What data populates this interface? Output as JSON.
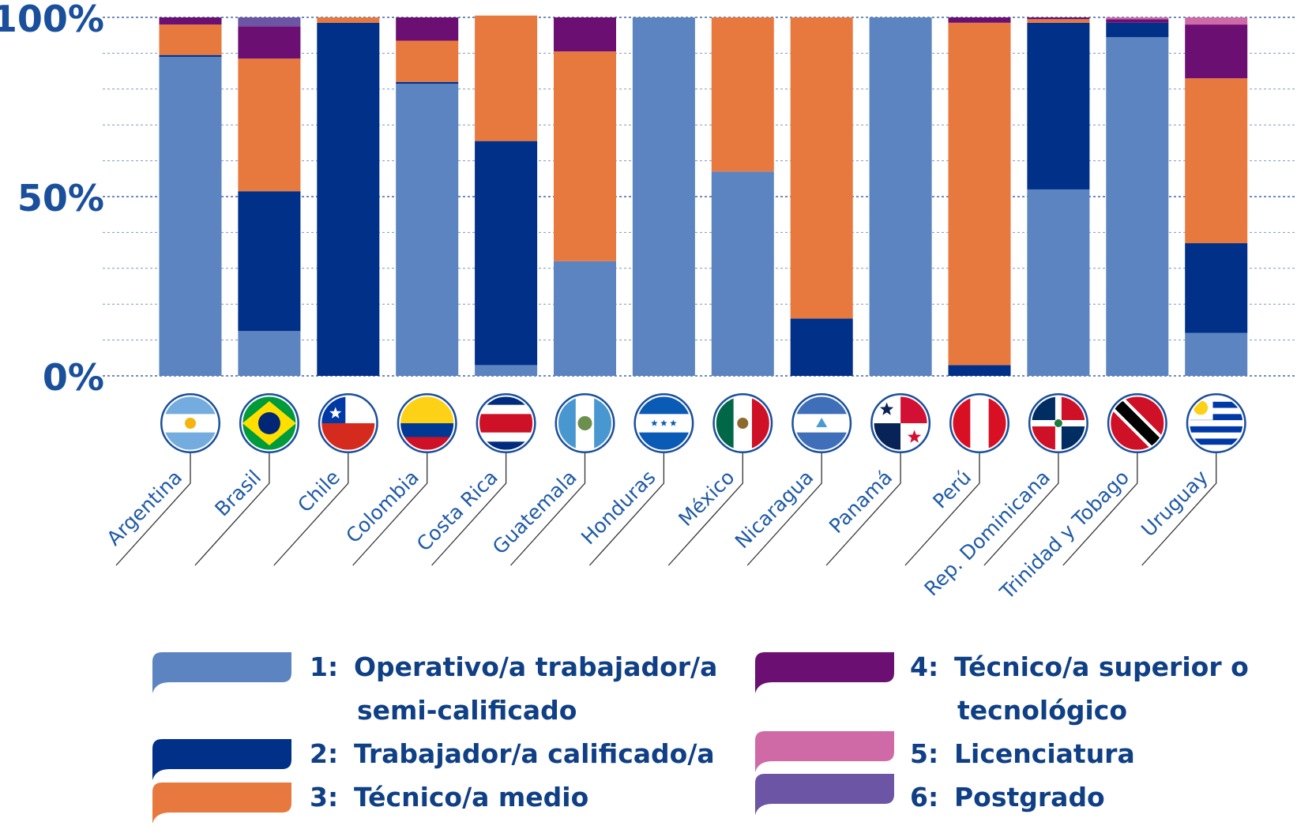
{
  "chart_data": {
    "type": "bar",
    "stacked": true,
    "title": "",
    "xlabel": "",
    "ylabel": "",
    "ylim": [
      0,
      100
    ],
    "y_ticks": [
      {
        "value": 0,
        "label": "0%"
      },
      {
        "value": 50,
        "label": "50%"
      },
      {
        "value": 100,
        "label": "100%"
      }
    ],
    "grid": true,
    "categories": [
      "Argentina",
      "Brasil",
      "Chile",
      "Colombia",
      "Costa Rica",
      "Guatemala",
      "Honduras",
      "México",
      "Nicaragua",
      "Panamá",
      "Perú",
      "Rep. Dominicana",
      "Trinidad y Tobago",
      "Uruguay"
    ],
    "series": [
      {
        "name": "Operativo/a trabajador/a semi-calificado",
        "number": "1:",
        "color": "#5b84c0",
        "values": [
          89,
          12.5,
          0,
          81.5,
          3,
          32,
          100,
          57,
          0,
          100,
          0,
          52,
          94.5,
          12
        ]
      },
      {
        "name": "Trabajador/a calificado/a",
        "number": "2:",
        "color": "#003087",
        "values": [
          0.5,
          39,
          98.5,
          0.5,
          62.5,
          0,
          0,
          0,
          16,
          0,
          3,
          46.5,
          4,
          25
        ]
      },
      {
        "name": "Técnico/a medio",
        "number": "3:",
        "color": "#e8793e",
        "values": [
          8.5,
          37,
          1.5,
          11.5,
          35,
          58.5,
          0,
          43,
          84,
          0,
          95.5,
          1,
          0,
          46
        ]
      },
      {
        "name": "Técnico/a superior o tecnológico",
        "number": "4:",
        "color": "#6b0f73",
        "values": [
          2,
          9,
          0,
          6.5,
          0,
          9.5,
          0,
          0,
          0,
          0,
          1.5,
          0.5,
          1,
          15
        ]
      },
      {
        "name": "Licenciatura",
        "number": "5:",
        "color": "#d06aa6",
        "values": [
          0,
          0,
          0,
          0,
          0,
          0,
          0,
          0,
          0,
          0,
          0,
          0,
          0.5,
          2
        ]
      },
      {
        "name": "Postgrado",
        "number": "6:",
        "color": "#6b55a4",
        "values": [
          0,
          2.5,
          0,
          0,
          0,
          0,
          0,
          0,
          0,
          0,
          0,
          0,
          0,
          0
        ]
      }
    ],
    "legend_position": "bottom"
  },
  "legend": [
    {
      "number": "1:",
      "lines": [
        "Operativo/a trabajador/a",
        "semi-calificado"
      ],
      "color": "#5b84c0"
    },
    {
      "number": "2:",
      "lines": [
        "Trabajador/a calificado/a"
      ],
      "color": "#003087"
    },
    {
      "number": "3:",
      "lines": [
        "Técnico/a medio"
      ],
      "color": "#e8793e"
    },
    {
      "number": "4:",
      "lines": [
        "Técnico/a superior o",
        "tecnológico"
      ],
      "color": "#6b0f73"
    },
    {
      "number": "5:",
      "lines": [
        "Licenciatura"
      ],
      "color": "#d06aa6"
    },
    {
      "number": "6:",
      "lines": [
        "Postgrado"
      ],
      "color": "#6b55a4"
    }
  ],
  "flags": [
    {
      "country": "Argentina",
      "icon": "argentina-flag-icon"
    },
    {
      "country": "Brasil",
      "icon": "brazil-flag-icon"
    },
    {
      "country": "Chile",
      "icon": "chile-flag-icon"
    },
    {
      "country": "Colombia",
      "icon": "colombia-flag-icon"
    },
    {
      "country": "Costa Rica",
      "icon": "costa-rica-flag-icon"
    },
    {
      "country": "Guatemala",
      "icon": "guatemala-flag-icon"
    },
    {
      "country": "Honduras",
      "icon": "honduras-flag-icon"
    },
    {
      "country": "México",
      "icon": "mexico-flag-icon"
    },
    {
      "country": "Nicaragua",
      "icon": "nicaragua-flag-icon"
    },
    {
      "country": "Panamá",
      "icon": "panama-flag-icon"
    },
    {
      "country": "Perú",
      "icon": "peru-flag-icon"
    },
    {
      "country": "Rep. Dominicana",
      "icon": "dominican-republic-flag-icon"
    },
    {
      "country": "Trinidad y Tobago",
      "icon": "trinidad-and-tobago-flag-icon"
    },
    {
      "country": "Uruguay",
      "icon": "uruguay-flag-icon"
    }
  ],
  "colors": {
    "axis_text": "#1a4f9c",
    "grid": "#2b55a0",
    "label_text": "#1f5aa6",
    "legend_text": "#0f3f85"
  }
}
